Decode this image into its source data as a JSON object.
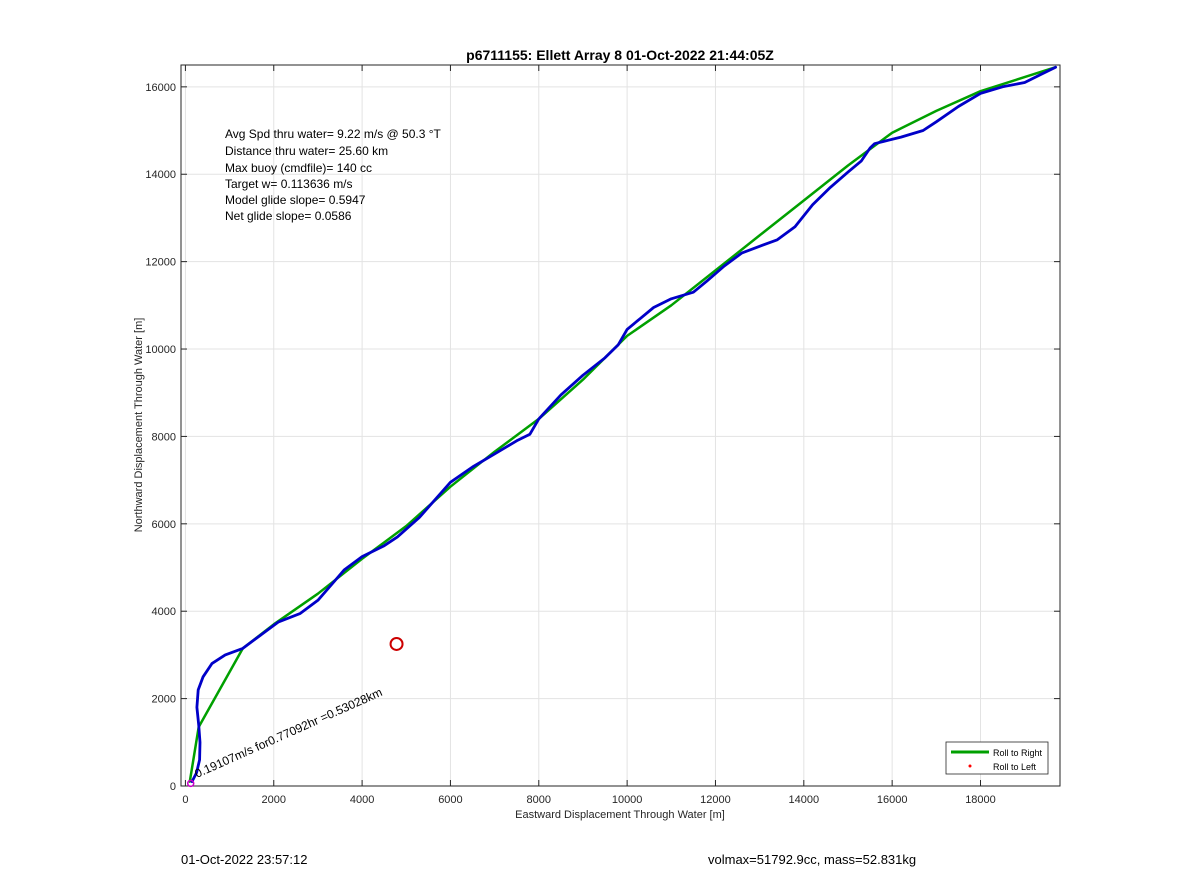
{
  "footer": {
    "timestamp": "01-Oct-2022 23:57:12",
    "stats": "volmax=51792.9cc, mass=52.831kg"
  },
  "chart_data": {
    "type": "line",
    "title": "p6711155: Ellett Array 8 01-Oct-2022 21:44:05Z",
    "xlabel": "Eastward Displacement Through Water [m]",
    "ylabel": "Northward Displacement Through Water [m]",
    "xlim": [
      -100,
      19800
    ],
    "ylim": [
      0,
      16500
    ],
    "xticks": [
      0,
      2000,
      4000,
      6000,
      8000,
      10000,
      12000,
      14000,
      16000,
      18000
    ],
    "yticks": [
      0,
      2000,
      4000,
      6000,
      8000,
      10000,
      12000,
      14000,
      16000
    ],
    "grid": true,
    "legend": {
      "location": "bottom-right",
      "entries": [
        {
          "label": "Roll to Right",
          "color": "#00a000",
          "marker": "line"
        },
        {
          "label": "Roll to Left",
          "color": "#ff0000",
          "marker": "dot"
        }
      ]
    },
    "annotations": [
      "Avg Spd thru water=  9.22 m/s @  50.3 °T",
      "Distance thru water= 25.60 km",
      "Max buoy (cmdfile)= 140 cc",
      "Target w= 0.113636 m/s",
      "Model glide slope= 0.5947",
      "Net glide slope= 0.0586"
    ],
    "drift_label": "0.19107m/s for0.77092hr =0.53028km",
    "marker_circle": {
      "x": 4780,
      "y": 3250,
      "color": "#cc0000"
    },
    "series": [
      {
        "color": "#00a000",
        "x": [
          100,
          300,
          1300,
          2000,
          3000,
          4000,
          5000,
          6000,
          7000,
          8000,
          9000,
          10000,
          11000,
          12000,
          13000,
          14000,
          15000,
          16000,
          17000,
          18000,
          19700
        ],
        "y": [
          100,
          1350,
          3150,
          3700,
          4400,
          5200,
          5950,
          6850,
          7650,
          8400,
          9300,
          10300,
          11000,
          11800,
          12600,
          13400,
          14200,
          14950,
          15450,
          15900,
          16450
        ]
      },
      {
        "color": "#0000c8",
        "x": [
          150,
          250,
          320,
          330,
          300,
          260,
          290,
          400,
          600,
          900,
          1300,
          1700,
          2100,
          2600,
          3000,
          3300,
          3600,
          4000,
          4500,
          4800,
          5300,
          6000,
          6500,
          7000,
          7500,
          7800,
          8000,
          8500,
          9000,
          9500,
          9800,
          10000,
          10300,
          10600,
          11000,
          11500,
          11800,
          12200,
          12600,
          13000,
          13400,
          13800,
          14200,
          14600,
          15000,
          15300,
          15500,
          15600,
          15800,
          16200,
          16700,
          17000,
          17500,
          18000,
          18500,
          19000,
          19400,
          19700
        ],
        "y": [
          100,
          300,
          600,
          1000,
          1400,
          1800,
          2200,
          2500,
          2800,
          3000,
          3150,
          3450,
          3750,
          3950,
          4250,
          4600,
          4950,
          5250,
          5500,
          5700,
          6150,
          6950,
          7300,
          7600,
          7900,
          8050,
          8400,
          8950,
          9400,
          9800,
          10100,
          10450,
          10700,
          10950,
          11150,
          11300,
          11550,
          11900,
          12200,
          12350,
          12500,
          12800,
          13300,
          13700,
          14050,
          14300,
          14600,
          14700,
          14750,
          14850,
          15000,
          15200,
          15550,
          15850,
          16000,
          16100,
          16300,
          16450
        ]
      }
    ]
  }
}
